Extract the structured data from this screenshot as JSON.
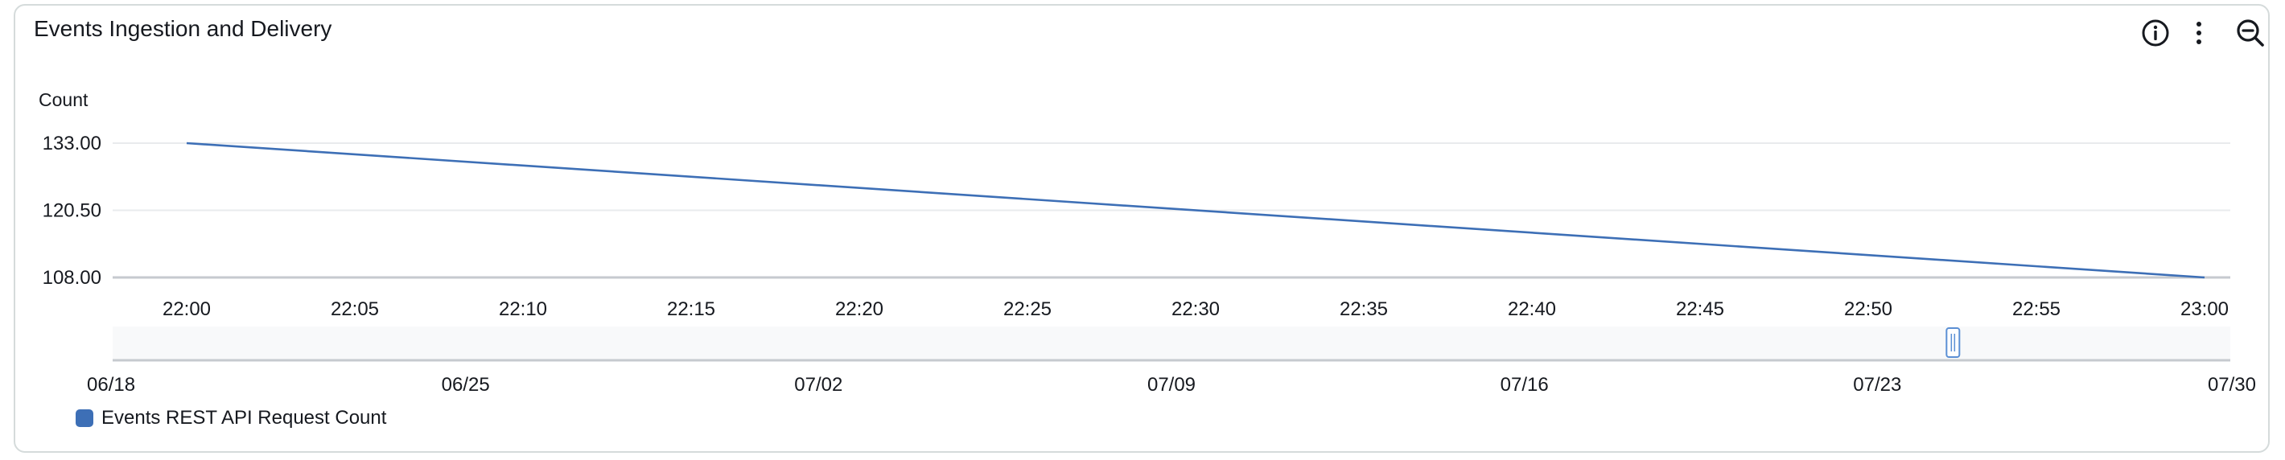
{
  "widget": {
    "title": "Events Ingestion and Delivery",
    "icons": [
      "info-icon",
      "more-vertical-icon",
      "zoom-out-icon"
    ]
  },
  "colors": {
    "series": "#3d6fb6",
    "grid": "#e9ebed",
    "axis": "#c6cacf",
    "nav_bg": "#f8f9fa",
    "handle": "#5b8fd4"
  },
  "chart_data": {
    "type": "line",
    "title": "Events Ingestion and Delivery",
    "ylabel": "Count",
    "xlabel": "",
    "ylim": [
      108,
      133
    ],
    "y_ticks": [
      "133.00",
      "120.50",
      "108.00"
    ],
    "y_tick_values": [
      133,
      120.5,
      108
    ],
    "x_ticks": [
      "22:00",
      "22:05",
      "22:10",
      "22:15",
      "22:20",
      "22:25",
      "22:30",
      "22:35",
      "22:40",
      "22:45",
      "22:50",
      "22:55",
      "23:00"
    ],
    "x_range_minutes": [
      0,
      60
    ],
    "series": [
      {
        "name": "Events REST API Request Count",
        "x_minutes": [
          0,
          60
        ],
        "values": [
          133,
          108
        ]
      }
    ],
    "navigator": {
      "ticks": [
        "06/18",
        "06/25",
        "07/02",
        "07/09",
        "07/16",
        "07/23",
        "07/30"
      ],
      "range_days": [
        0,
        42
      ],
      "window_day": 36.5
    },
    "grid": true,
    "legend": "bottom-left"
  }
}
